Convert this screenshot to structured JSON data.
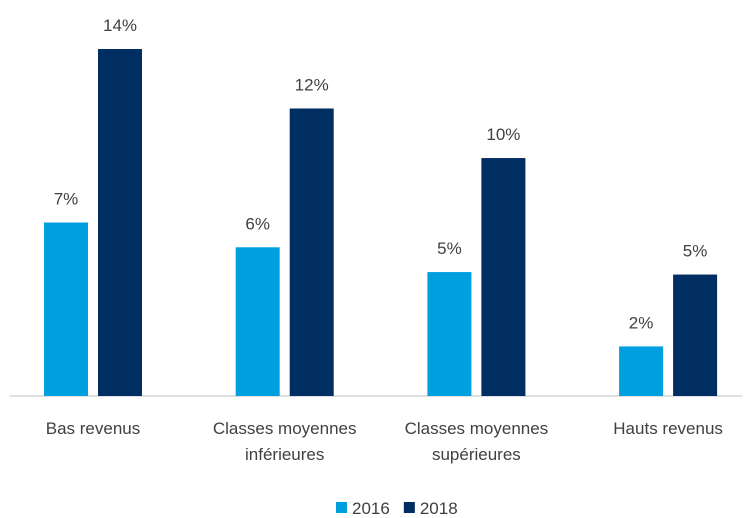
{
  "chart_data": {
    "type": "bar",
    "categories": [
      "Bas revenus",
      "Classes moyennes inférieures",
      "Classes moyennes supérieures",
      "Hauts revenus"
    ],
    "series": [
      {
        "name": "2016",
        "color": "#009fdf",
        "values": [
          7,
          6,
          5,
          2
        ],
        "value_labels": [
          "7%",
          "6%",
          "5%",
          "2%"
        ]
      },
      {
        "name": "2018",
        "color": "#002d62",
        "values": [
          14,
          11.6,
          9.6,
          4.9
        ],
        "value_labels": [
          "14%",
          "12%",
          "10%",
          "5%"
        ]
      }
    ],
    "legend": "bottom"
  }
}
